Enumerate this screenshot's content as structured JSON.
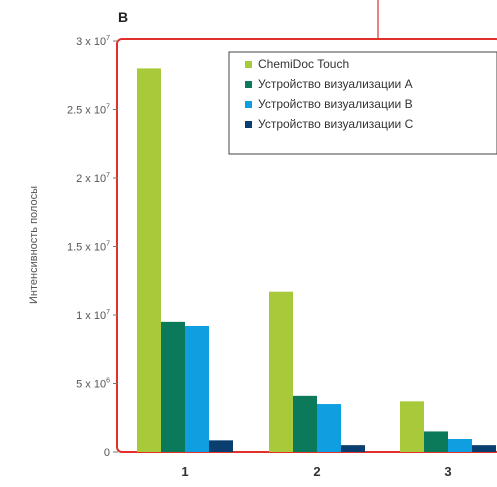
{
  "panel_label": "B",
  "colors": {
    "frame": "#e0302a",
    "series": [
      "#a8c93a",
      "#0a7a5a",
      "#0f9ee0",
      "#0a3e6e"
    ]
  },
  "chart_data": {
    "type": "bar",
    "categories": [
      "1",
      "2",
      "3"
    ],
    "series": [
      {
        "name": "ChemiDoc Touch",
        "values": [
          28000000,
          11700000,
          3700000
        ]
      },
      {
        "name": "Устройство визуализации A",
        "values": [
          9500000,
          4100000,
          1500000
        ]
      },
      {
        "name": "Устройство визуализации B",
        "values": [
          9200000,
          3500000,
          950000
        ]
      },
      {
        "name": "Устройство визуализации C",
        "values": [
          850000,
          500000,
          500000
        ]
      }
    ],
    "ylabel": "Интенсивность полосы",
    "xlabel": "",
    "ylim": [
      0,
      30000000
    ],
    "yticks": [
      {
        "value": 0,
        "mant": "0",
        "exp": ""
      },
      {
        "value": 5000000,
        "mant": "5 x 10",
        "exp": "6"
      },
      {
        "value": 10000000,
        "mant": "1 x 10",
        "exp": "7"
      },
      {
        "value": 15000000,
        "mant": "1.5 x 10",
        "exp": "7"
      },
      {
        "value": 20000000,
        "mant": "2 x 10",
        "exp": "7"
      },
      {
        "value": 25000000,
        "mant": "2.5 x 10",
        "exp": "7"
      },
      {
        "value": 30000000,
        "mant": "3 x 10",
        "exp": "7"
      }
    ],
    "legend_position": "top-right"
  }
}
